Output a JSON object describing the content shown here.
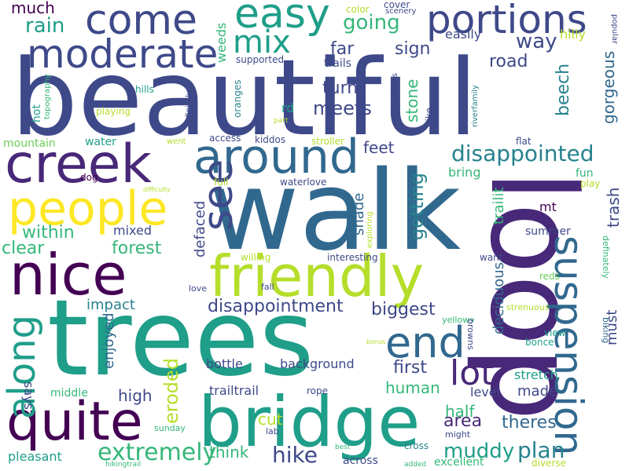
{
  "palette": {
    "d": "#440154",
    "i": "#482878",
    "b": "#3e4989",
    "s": "#31688e",
    "t": "#26828e",
    "g": "#1f9e89",
    "l": "#35b779",
    "y": "#6ece58",
    "n": "#b5de2b",
    "e": "#fde725"
  },
  "words": [
    {
      "text": "beautiful",
      "color": "b"
    },
    {
      "text": "walk",
      "color": "s"
    },
    {
      "text": "trees",
      "color": "g"
    },
    {
      "text": "loop",
      "color": "i"
    },
    {
      "text": "bridge",
      "color": "g"
    },
    {
      "text": "friendly",
      "color": "n"
    },
    {
      "text": "creek",
      "color": "i"
    },
    {
      "text": "around",
      "color": "s"
    },
    {
      "text": "nice",
      "color": "d"
    },
    {
      "text": "people",
      "color": "e"
    },
    {
      "text": "quite",
      "color": "d"
    },
    {
      "text": "portions",
      "color": "b"
    },
    {
      "text": "come",
      "color": "b"
    },
    {
      "text": "easy",
      "color": "g"
    },
    {
      "text": "moderate",
      "color": "b"
    },
    {
      "text": "end",
      "color": "s"
    },
    {
      "text": "see",
      "color": "b"
    },
    {
      "text": "suspension",
      "color": "s"
    },
    {
      "text": "along",
      "color": "g"
    },
    {
      "text": "lot",
      "color": "i"
    },
    {
      "text": "mix",
      "color": "g"
    },
    {
      "text": "disappointed",
      "color": "t"
    },
    {
      "text": "extremely",
      "color": "l"
    },
    {
      "text": "hike",
      "color": "b"
    },
    {
      "text": "muddy",
      "color": "g"
    },
    {
      "text": "plan",
      "color": "t"
    },
    {
      "text": "getting",
      "color": "t"
    },
    {
      "text": "disappointment",
      "color": "b"
    },
    {
      "text": "biggest",
      "color": "b"
    },
    {
      "text": "going",
      "color": "l"
    },
    {
      "text": "rain",
      "color": "g"
    },
    {
      "text": "way",
      "color": "b"
    },
    {
      "text": "eroded",
      "color": "n"
    },
    {
      "text": "within",
      "color": "l"
    },
    {
      "text": "forest",
      "color": "l"
    },
    {
      "text": "clear",
      "color": "l"
    },
    {
      "text": "defaced",
      "color": "b"
    },
    {
      "text": "sign",
      "color": "b"
    },
    {
      "text": "far",
      "color": "b"
    },
    {
      "text": "much",
      "color": "d"
    },
    {
      "text": "meets",
      "color": "b"
    },
    {
      "text": "turn",
      "color": "b"
    },
    {
      "text": "road",
      "color": "b"
    },
    {
      "text": "stone",
      "color": "l"
    },
    {
      "text": "beech",
      "color": "t"
    },
    {
      "text": "gorgeous",
      "color": "s"
    },
    {
      "text": "trash",
      "color": "b"
    },
    {
      "text": "feet",
      "color": "b"
    },
    {
      "text": "first",
      "color": "b"
    },
    {
      "text": "human",
      "color": "l"
    },
    {
      "text": "area",
      "color": "i"
    },
    {
      "text": "half",
      "color": "l"
    },
    {
      "text": "theres",
      "color": "s"
    },
    {
      "text": "made",
      "color": "b"
    },
    {
      "text": "must",
      "color": "b"
    },
    {
      "text": "high",
      "color": "b"
    },
    {
      "text": "enjoyed",
      "color": "s"
    },
    {
      "text": "says",
      "color": "b"
    },
    {
      "text": "impact",
      "color": "t"
    },
    {
      "text": "think",
      "color": "l"
    },
    {
      "text": "cut",
      "color": "n"
    },
    {
      "text": "trailit",
      "color": "l"
    },
    {
      "text": "deciduous",
      "color": "s"
    },
    {
      "text": "shade",
      "color": "s"
    },
    {
      "text": "mt",
      "color": "d"
    },
    {
      "text": "summer",
      "color": "b"
    },
    {
      "text": "stretch",
      "color": "g"
    },
    {
      "text": "level",
      "color": "b"
    },
    {
      "text": "bottle",
      "color": "b"
    },
    {
      "text": "background",
      "color": "b"
    },
    {
      "text": "trailtrail",
      "color": "b"
    },
    {
      "text": "mixed",
      "color": "b"
    },
    {
      "text": "bring",
      "color": "l"
    },
    {
      "text": "weeds",
      "color": "l"
    },
    {
      "text": "hilly",
      "color": "n"
    },
    {
      "text": "easily",
      "color": "b"
    },
    {
      "text": "trails",
      "color": "b"
    },
    {
      "text": "supported",
      "color": "b"
    },
    {
      "text": "rd",
      "color": "g"
    },
    {
      "text": "hot",
      "color": "g"
    },
    {
      "text": "mountain",
      "color": "y"
    },
    {
      "text": "water",
      "color": "g"
    },
    {
      "text": "dog",
      "color": "d"
    },
    {
      "text": "access",
      "color": "b"
    },
    {
      "text": "kiddos",
      "color": "b"
    },
    {
      "text": "stroller",
      "color": "n"
    },
    {
      "text": "flat",
      "color": "b"
    },
    {
      "text": "fun",
      "color": "l"
    },
    {
      "text": "play",
      "color": "n"
    },
    {
      "text": "full",
      "color": "n"
    },
    {
      "text": "waterlove",
      "color": "b"
    },
    {
      "text": "cover",
      "color": "b"
    },
    {
      "text": "scenery",
      "color": "b"
    },
    {
      "text": "color",
      "color": "n"
    },
    {
      "text": "popular",
      "color": "b"
    },
    {
      "text": "hills",
      "color": "g"
    },
    {
      "text": "playing",
      "color": "n"
    },
    {
      "text": "topography",
      "color": "l"
    },
    {
      "text": "oranges",
      "color": "t"
    },
    {
      "text": "definitely",
      "color": "b"
    },
    {
      "text": "part",
      "color": "n"
    },
    {
      "text": "went",
      "color": "n"
    },
    {
      "text": "things",
      "color": "b"
    },
    {
      "text": "bike",
      "color": "b"
    },
    {
      "text": "riverfamily",
      "color": "t"
    },
    {
      "text": "exploring",
      "color": "n"
    },
    {
      "text": "difficulty",
      "color": "n"
    },
    {
      "text": "willing",
      "color": "n"
    },
    {
      "text": "interesting",
      "color": "b"
    },
    {
      "text": "want",
      "color": "b"
    },
    {
      "text": "reds",
      "color": "y"
    },
    {
      "text": "definately",
      "color": "l"
    },
    {
      "text": "biking",
      "color": "s"
    },
    {
      "text": "love",
      "color": "b"
    },
    {
      "text": "fall",
      "color": "b"
    },
    {
      "text": "strenuous",
      "color": "n"
    },
    {
      "text": "yellows",
      "color": "l"
    },
    {
      "text": "browns",
      "color": "b"
    },
    {
      "text": "view",
      "color": "g"
    },
    {
      "text": "bonce",
      "color": "g"
    },
    {
      "text": "rope",
      "color": "b"
    },
    {
      "text": "middle",
      "color": "l"
    },
    {
      "text": "sunday",
      "color": "l"
    },
    {
      "text": "lab",
      "color": "b"
    },
    {
      "text": "bonus",
      "color": "n"
    },
    {
      "text": "might",
      "color": "b"
    },
    {
      "text": "pleasant",
      "color": "g"
    },
    {
      "text": "across",
      "color": "b"
    },
    {
      "text": "excellent",
      "color": "l"
    },
    {
      "text": "cross",
      "color": "t"
    },
    {
      "text": "best",
      "color": "l"
    },
    {
      "text": "added",
      "color": "l"
    },
    {
      "text": "hikingtrail",
      "color": "l"
    },
    {
      "text": "diverse",
      "color": "n"
    }
  ]
}
